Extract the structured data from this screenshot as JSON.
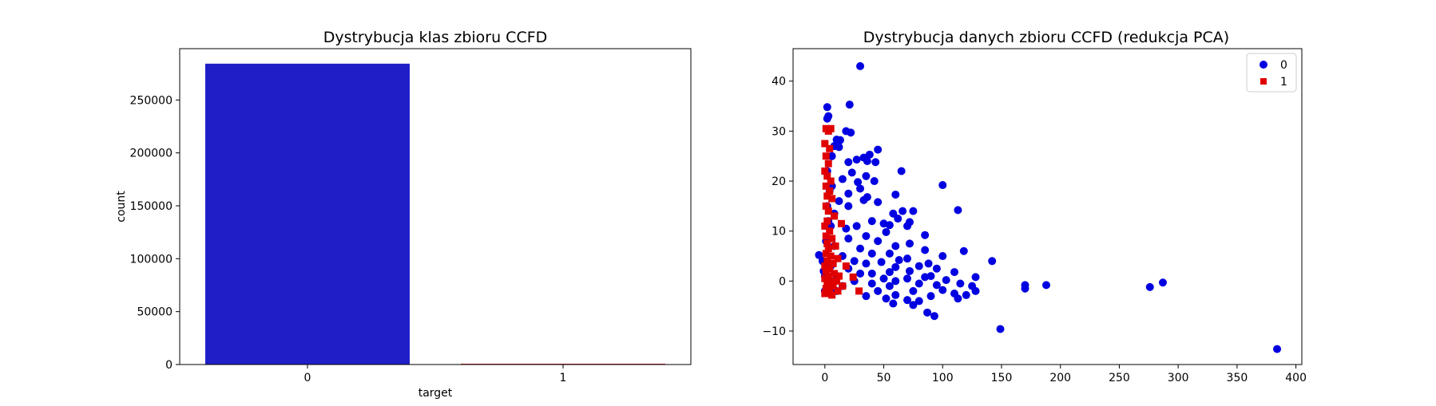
{
  "chart_data": [
    {
      "type": "bar",
      "title": "Dystrybucja klas zbioru CCFD",
      "xlabel": "target",
      "ylabel": "count",
      "categories": [
        "0",
        "1"
      ],
      "values": [
        284315,
        492
      ],
      "colors": [
        "#1f1fc8",
        "#c81f1f"
      ],
      "ylim": [
        0,
        298500
      ],
      "yticks": [
        0,
        50000,
        100000,
        150000,
        200000,
        250000
      ],
      "ytick_labels": [
        "0",
        "50000",
        "100000",
        "150000",
        "200000",
        "250000"
      ],
      "grid": false
    },
    {
      "type": "scatter",
      "title": "Dystrybucja danych zbioru CCFD (redukcja PCA)",
      "xlabel": "",
      "ylabel": "",
      "xlim": [
        -27,
        405
      ],
      "ylim": [
        -16.7,
        46.5
      ],
      "xticks": [
        0,
        50,
        100,
        150,
        200,
        250,
        300,
        350,
        400
      ],
      "xtick_labels": [
        "0",
        "50",
        "100",
        "150",
        "200",
        "250",
        "300",
        "350",
        "400"
      ],
      "yticks": [
        -10,
        0,
        10,
        20,
        30,
        40
      ],
      "ytick_labels": [
        "−10",
        "0",
        "10",
        "20",
        "30",
        "40"
      ],
      "legend_position": "top-right",
      "grid": false,
      "series": [
        {
          "name": "0",
          "marker": "circle",
          "color": "#0000e0",
          "points": [
            [
              30,
              43
            ],
            [
              21,
              35.3
            ],
            [
              2,
              34.8
            ],
            [
              3,
              33
            ],
            [
              2,
              32.5
            ],
            [
              18,
              30
            ],
            [
              22,
              29.7
            ],
            [
              10,
              28.3
            ],
            [
              13,
              28.2
            ],
            [
              12,
              26.8
            ],
            [
              45,
              26.3
            ],
            [
              38,
              25.3
            ],
            [
              33,
              24.7
            ],
            [
              27,
              24.3
            ],
            [
              20,
              23.8
            ],
            [
              36,
              24
            ],
            [
              43,
              23.8
            ],
            [
              65,
              22
            ],
            [
              2,
              22
            ],
            [
              23,
              21.7
            ],
            [
              35,
              21
            ],
            [
              15,
              20.4
            ],
            [
              42,
              20
            ],
            [
              28,
              19.8
            ],
            [
              100,
              19.2
            ],
            [
              6,
              19
            ],
            [
              30,
              18.5
            ],
            [
              4,
              18
            ],
            [
              20,
              17.5
            ],
            [
              60,
              17.3
            ],
            [
              36,
              16.8
            ],
            [
              33,
              16.2
            ],
            [
              12,
              16
            ],
            [
              45,
              15.8
            ],
            [
              20,
              15
            ],
            [
              113,
              14.2
            ],
            [
              75,
              14
            ],
            [
              66,
              14
            ],
            [
              58,
              13.5
            ],
            [
              8,
              13.5
            ],
            [
              62,
              12.5
            ],
            [
              40,
              12
            ],
            [
              72,
              11.8
            ],
            [
              50,
              11.5
            ],
            [
              27,
              11
            ],
            [
              70,
              11
            ],
            [
              55,
              11.2
            ],
            [
              5,
              11
            ],
            [
              18,
              10.5
            ],
            [
              52,
              9.8
            ],
            [
              35,
              9
            ],
            [
              85,
              9.2
            ],
            [
              20,
              8.5
            ],
            [
              45,
              8
            ],
            [
              72,
              7.5
            ],
            [
              60,
              7
            ],
            [
              8,
              7
            ],
            [
              30,
              6.5
            ],
            [
              118,
              6
            ],
            [
              85,
              6.2
            ],
            [
              55,
              5.5
            ],
            [
              40,
              5.5
            ],
            [
              100,
              5
            ],
            [
              15,
              5
            ],
            [
              70,
              4.5
            ],
            [
              63,
              4.2
            ],
            [
              25,
              4
            ],
            [
              142,
              4
            ],
            [
              48,
              3.8
            ],
            [
              88,
              3.5
            ],
            [
              35,
              3.5
            ],
            [
              80,
              3
            ],
            [
              5,
              3
            ],
            [
              60,
              2.8
            ],
            [
              20,
              2.5
            ],
            [
              95,
              2.5
            ],
            [
              72,
              2
            ],
            [
              55,
              1.8
            ],
            [
              110,
              1.8
            ],
            [
              40,
              1.5
            ],
            [
              30,
              1.5
            ],
            [
              90,
              1
            ],
            [
              -5,
              5.2
            ],
            [
              -2,
              4
            ],
            [
              -1,
              2
            ],
            [
              0,
              1
            ],
            [
              10,
              1
            ],
            [
              85,
              0.8
            ],
            [
              128,
              0.8
            ],
            [
              70,
              0.5
            ],
            [
              50,
              0.5
            ],
            [
              103,
              0.2
            ],
            [
              25,
              0
            ],
            [
              60,
              0
            ],
            [
              115,
              -0.5
            ],
            [
              80,
              -0.5
            ],
            [
              40,
              -0.5
            ],
            [
              95,
              -0.8
            ],
            [
              125,
              -1
            ],
            [
              15,
              -1
            ],
            [
              55,
              -1
            ],
            [
              170,
              -0.8
            ],
            [
              188,
              -0.8
            ],
            [
              287,
              -0.3
            ],
            [
              276,
              -1.2
            ],
            [
              170,
              -1.5
            ],
            [
              100,
              -1.8
            ],
            [
              128,
              -2
            ],
            [
              75,
              -2
            ],
            [
              45,
              -2
            ],
            [
              110,
              -2.5
            ],
            [
              120,
              -2.8
            ],
            [
              60,
              -2.8
            ],
            [
              90,
              -3
            ],
            [
              35,
              -3
            ],
            [
              113,
              -3.5
            ],
            [
              70,
              -3.8
            ],
            [
              52,
              -3.5
            ],
            [
              80,
              -4
            ],
            [
              58,
              -4.5
            ],
            [
              75,
              -4.8
            ],
            [
              87,
              -6.3
            ],
            [
              93,
              -7
            ],
            [
              149,
              -9.6
            ],
            [
              384,
              -13.6
            ],
            [
              0,
              -2
            ],
            [
              5,
              -1.5
            ],
            [
              10,
              -2
            ],
            [
              2,
              15
            ],
            [
              3,
              12
            ],
            [
              1,
              8
            ],
            [
              6,
              25
            ],
            [
              8,
              27
            ]
          ]
        },
        {
          "name": "1",
          "marker": "square",
          "color": "#e00000",
          "points": [
            [
              1,
              30.5
            ],
            [
              3,
              30
            ],
            [
              5,
              30.5
            ],
            [
              0,
              27.5
            ],
            [
              4,
              26.5
            ],
            [
              1,
              25
            ],
            [
              3,
              23.5
            ],
            [
              0,
              22
            ],
            [
              2,
              21
            ],
            [
              5,
              20
            ],
            [
              1,
              19
            ],
            [
              4,
              18
            ],
            [
              2,
              17
            ],
            [
              6,
              16.5
            ],
            [
              1,
              15
            ],
            [
              3,
              14
            ],
            [
              8,
              13
            ],
            [
              2,
              12
            ],
            [
              0,
              11
            ],
            [
              14,
              11.5
            ],
            [
              4,
              10
            ],
            [
              1,
              9
            ],
            [
              6,
              8.5
            ],
            [
              2,
              7.5
            ],
            [
              9,
              7
            ],
            [
              3,
              6.5
            ],
            [
              1,
              5.5
            ],
            [
              5,
              5
            ],
            [
              11,
              4.5
            ],
            [
              2,
              4
            ],
            [
              7,
              3.5
            ],
            [
              0,
              3
            ],
            [
              4,
              2.5
            ],
            [
              18,
              3
            ],
            [
              1,
              2
            ],
            [
              8,
              1.5
            ],
            [
              3,
              1
            ],
            [
              12,
              1
            ],
            [
              0,
              0.5
            ],
            [
              5,
              0
            ],
            [
              10,
              0
            ],
            [
              24,
              0.8
            ],
            [
              2,
              -0.5
            ],
            [
              7,
              -1
            ],
            [
              15,
              -1
            ],
            [
              1,
              -1.5
            ],
            [
              4,
              -2
            ],
            [
              11,
              -2
            ],
            [
              29,
              -2
            ],
            [
              0,
              -2.5
            ],
            [
              6,
              -2.8
            ]
          ]
        }
      ]
    }
  ]
}
